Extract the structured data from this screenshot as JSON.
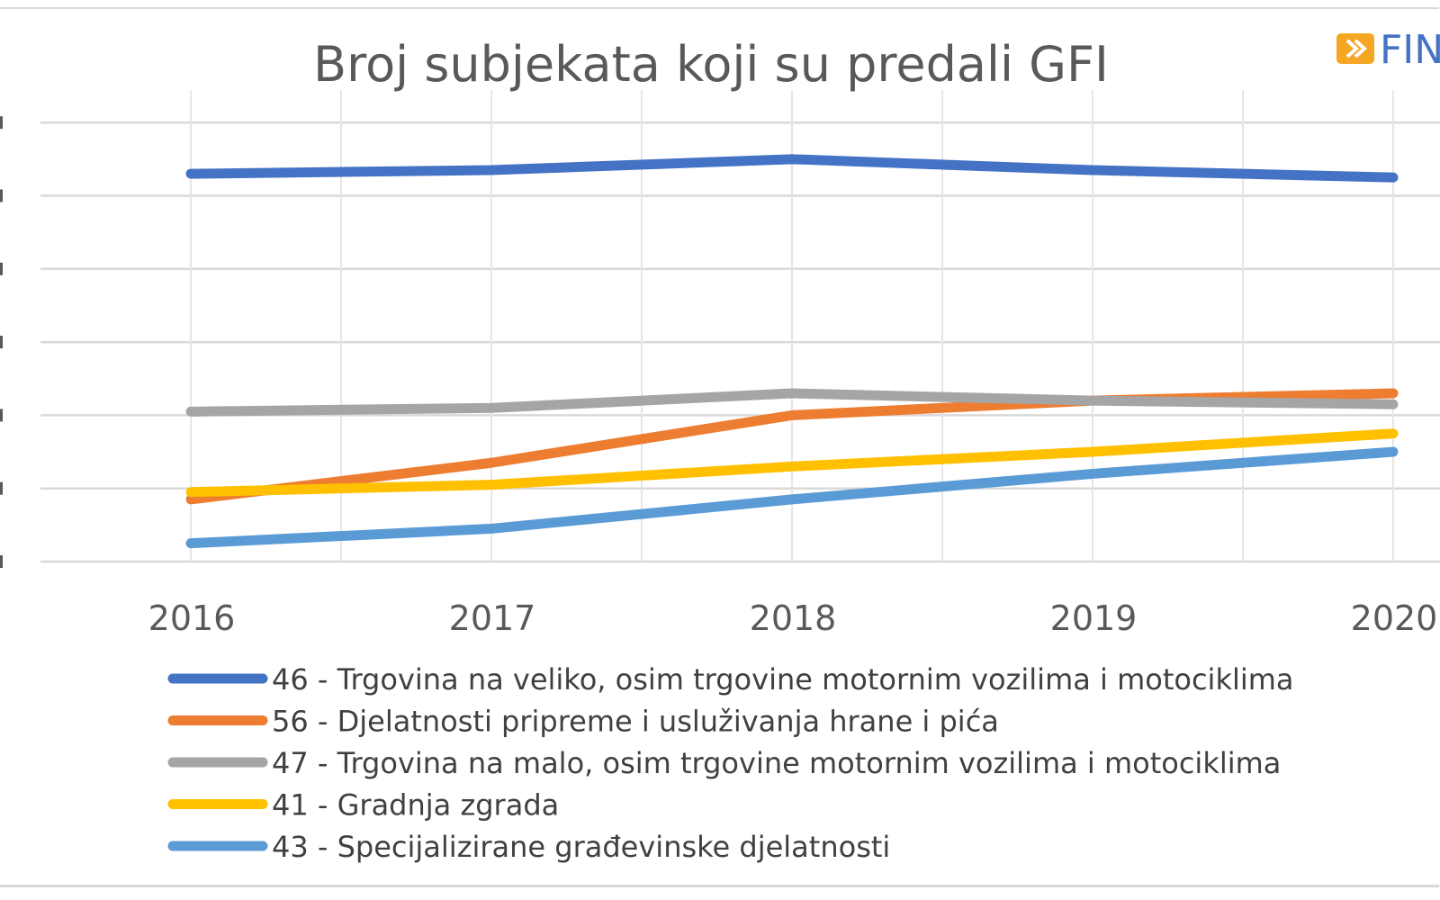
{
  "chart_data": {
    "type": "line",
    "title": "Broj subjekata koji su predali GFI",
    "xlabel": "",
    "ylabel": "",
    "categories": [
      "2016",
      "2017",
      "2018",
      "2019",
      "2020"
    ],
    "ylim": [
      0,
      6.5
    ],
    "y_ticks": [
      0,
      1,
      2,
      3,
      4,
      5,
      6
    ],
    "y_tick_labels_visible": false,
    "grid": true,
    "legend_position": "bottom",
    "series": [
      {
        "name": "46 - Trgovina na veliko, osim trgovine motornim vozilima i motociklima",
        "color": "#4472c4",
        "values": [
          5.3,
          5.35,
          5.5,
          5.35,
          5.25
        ]
      },
      {
        "name": "56 - Djelatnosti pripreme i usluživanja hrane i pića",
        "color": "#ed7d31",
        "values": [
          0.85,
          1.35,
          2.0,
          2.2,
          2.3
        ]
      },
      {
        "name": "47 - Trgovina na malo, osim trgovine motornim vozilima i motociklima",
        "color": "#a5a5a5",
        "values": [
          2.05,
          2.1,
          2.3,
          2.2,
          2.15
        ]
      },
      {
        "name": "41 - Gradnja zgrada",
        "color": "#ffc000",
        "values": [
          0.95,
          1.05,
          1.3,
          1.5,
          1.75
        ]
      },
      {
        "name": "43 - Specijalizirane građevinske djelatnosti",
        "color": "#5b9bd5",
        "values": [
          0.25,
          0.45,
          0.85,
          1.2,
          1.5
        ]
      }
    ]
  },
  "logo": {
    "text": "FIN",
    "icon": "fina-arrow-icon",
    "icon_color": "#f5a623",
    "text_color": "#4472c4"
  }
}
